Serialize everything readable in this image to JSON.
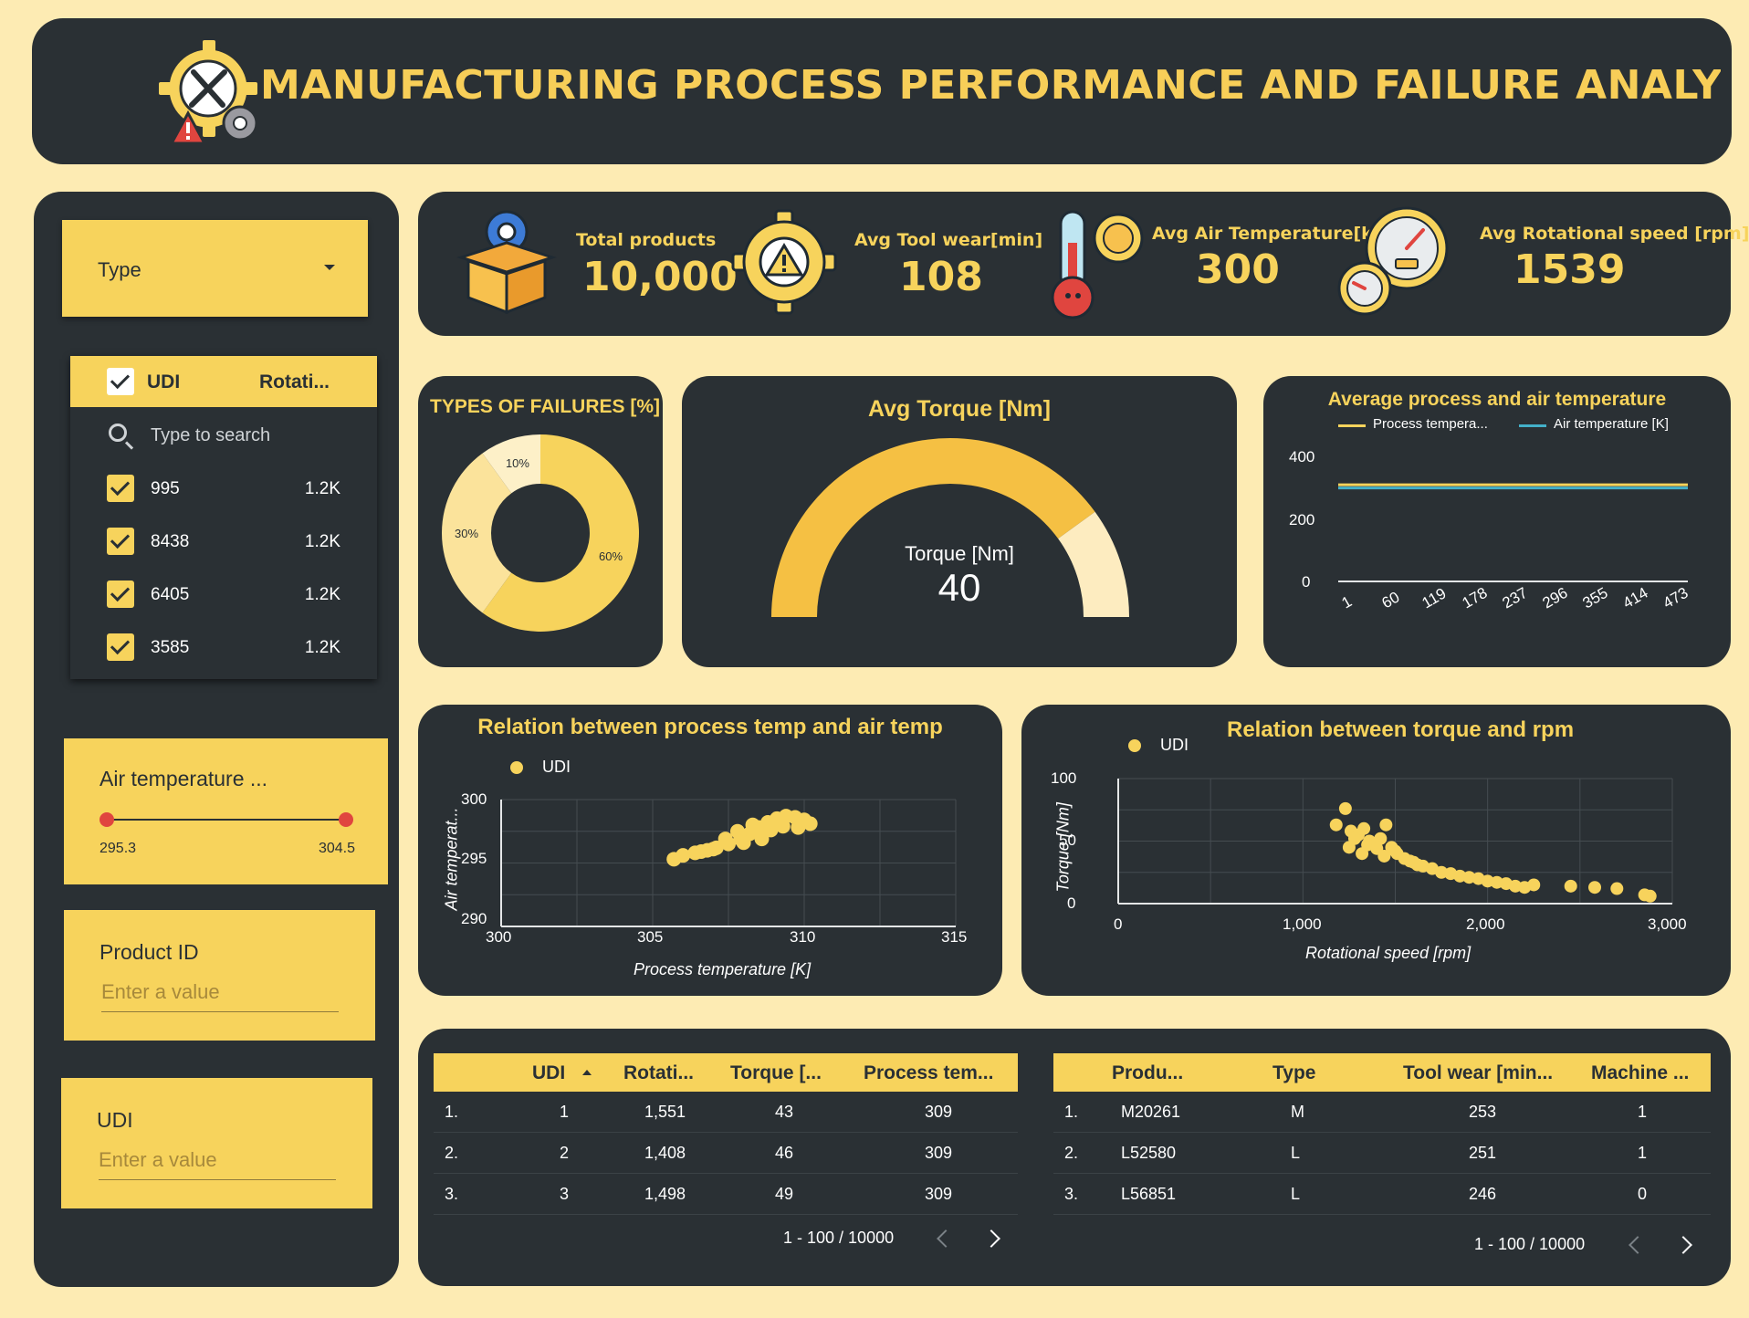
{
  "header": {
    "title": "MANUFACTURING PROCESS PERFORMANCE AND FAILURE ANALYSIS DASHBOARD"
  },
  "colors": {
    "background": "#fdebb3",
    "panel": "#2a3034",
    "accent": "#f7d35c",
    "slider_dot": "#e0453f",
    "air_line": "#43b0c9"
  },
  "filters": {
    "type_dropdown": {
      "label": "Type"
    },
    "udi_list": {
      "col1": "UDI",
      "col2": "Rotati...",
      "search_placeholder": "Type to search",
      "items": [
        {
          "value": "995",
          "count": "1.2K"
        },
        {
          "value": "8438",
          "count": "1.2K"
        },
        {
          "value": "6405",
          "count": "1.2K"
        },
        {
          "value": "3585",
          "count": "1.2K"
        }
      ]
    },
    "air_temp_slider": {
      "label": "Air temperature ...",
      "min": "295.3",
      "max": "304.5"
    },
    "product_id": {
      "label": "Product ID",
      "placeholder": "Enter a value"
    },
    "udi": {
      "label": "UDI",
      "placeholder": "Enter a value"
    }
  },
  "kpis": [
    {
      "label": "Total products",
      "value": "10,000",
      "icon": "box-gear-icon"
    },
    {
      "label": "Avg Tool wear[min]",
      "value": "108",
      "icon": "warning-gear-icon"
    },
    {
      "label": "Avg Air Temperature[k]",
      "value": "300",
      "icon": "thermometer-sun-icon"
    },
    {
      "label": "Avg Rotational speed [rpm]",
      "value": "1539",
      "icon": "speedometer-icon"
    }
  ],
  "failures_chart": {
    "title": "TYPES OF FAILURES [%]",
    "chart_data": {
      "type": "pie",
      "donut": true,
      "labels": [
        "60%",
        "30%",
        "10%"
      ],
      "values": [
        60,
        30,
        10
      ],
      "colors": [
        "#f7d35c",
        "#fbe39b",
        "#fdf0c8"
      ]
    }
  },
  "torque_gauge": {
    "title": "Avg Torque [Nm]",
    "label": "Torque [Nm]",
    "value": "40",
    "chart_data": {
      "type": "gauge",
      "value": 40,
      "min": 0,
      "max": 50
    }
  },
  "temp_line_chart": {
    "title": "Average process and air temperature",
    "legend": [
      "Process tempera...",
      "Air temperature [K]"
    ],
    "y_ticks": [
      "400",
      "200",
      "0"
    ],
    "x_ticks": [
      "1",
      "60",
      "119",
      "178",
      "237",
      "296",
      "355",
      "414",
      "473"
    ],
    "chart_data": {
      "type": "line",
      "ylim": [
        0,
        400
      ],
      "x": [
        1,
        60,
        119,
        178,
        237,
        296,
        355,
        414,
        473
      ],
      "series": [
        {
          "name": "Process tempera...",
          "color": "#f7d35c",
          "values": [
            309,
            309,
            309,
            309,
            309,
            309,
            309,
            309,
            309
          ]
        },
        {
          "name": "Air temperature [K]",
          "color": "#43b0c9",
          "values": [
            299,
            299,
            299,
            299,
            299,
            299,
            299,
            299,
            299
          ]
        }
      ]
    }
  },
  "scatter_temp": {
    "title": "Relation between process temp and air temp",
    "legend": "UDI",
    "xlabel": "Process temperature [K]",
    "ylabel": "Air temperat...",
    "x_ticks": [
      "300",
      "305",
      "310",
      "315"
    ],
    "y_ticks": [
      "300",
      "295",
      "290"
    ],
    "chart_data": {
      "type": "scatter",
      "xlim": [
        300,
        315
      ],
      "ylim": [
        290,
        300
      ],
      "x": [
        305.7,
        306.0,
        306.4,
        306.8,
        307.1,
        307.5,
        307.9,
        308.2,
        308.5,
        308.8,
        309.1,
        309.4,
        309.7,
        310.0,
        310.2,
        307.4,
        307.8,
        308.3,
        308.9,
        309.3,
        309.8,
        306.6,
        307.0,
        308.0,
        308.6
      ],
      "y": [
        295.3,
        295.6,
        295.8,
        296.0,
        296.2,
        296.5,
        296.9,
        297.3,
        297.8,
        298.2,
        298.5,
        298.7,
        298.6,
        298.4,
        298.1,
        296.9,
        297.5,
        298.0,
        297.6,
        297.9,
        297.8,
        295.9,
        296.1,
        296.6,
        296.9
      ]
    }
  },
  "scatter_torque": {
    "title": "Relation between torque and rpm",
    "legend": "UDI",
    "xlabel": "Rotational speed [rpm]",
    "ylabel": "Torque [Nm]",
    "x_ticks": [
      "0",
      "1,000",
      "2,000",
      "3,000"
    ],
    "y_ticks": [
      "100",
      "50",
      "0"
    ],
    "chart_data": {
      "type": "scatter",
      "xlim": [
        0,
        3000
      ],
      "ylim": [
        0,
        100
      ],
      "x": [
        1180,
        1230,
        1260,
        1300,
        1330,
        1360,
        1390,
        1420,
        1450,
        1480,
        1510,
        1250,
        1280,
        1350,
        1400,
        1500,
        1550,
        1600,
        1650,
        1700,
        1750,
        1800,
        1850,
        1900,
        1950,
        2000,
        2050,
        2100,
        2150,
        2200,
        2250,
        2450,
        2580,
        2700,
        2850,
        2880,
        1320,
        1440,
        1580,
        1620
      ],
      "y": [
        63,
        76,
        58,
        55,
        60,
        50,
        48,
        52,
        63,
        45,
        40,
        45,
        52,
        47,
        44,
        42,
        36,
        33,
        30,
        28,
        25,
        24,
        22,
        21,
        20,
        18,
        17,
        16,
        14,
        13,
        15,
        14,
        13,
        12,
        7,
        6,
        40,
        38,
        34,
        31
      ]
    }
  },
  "table_left": {
    "columns": [
      "UDI",
      "Rotati...",
      "Torque [...",
      "Process tem..."
    ],
    "rows": [
      {
        "idx": "1.",
        "c1": "1",
        "c2": "1,551",
        "c3": "43",
        "c4": "309"
      },
      {
        "idx": "2.",
        "c1": "2",
        "c2": "1,408",
        "c3": "46",
        "c4": "309"
      },
      {
        "idx": "3.",
        "c1": "3",
        "c2": "1,498",
        "c3": "49",
        "c4": "309"
      }
    ],
    "pager": "1 - 100 / 10000"
  },
  "table_right": {
    "columns": [
      "Produ...",
      "Type",
      "Tool wear [min...",
      "Machine ..."
    ],
    "rows": [
      {
        "idx": "1.",
        "c1": "M20261",
        "c2": "M",
        "c3": "253",
        "c4": "1"
      },
      {
        "idx": "2.",
        "c1": "L52580",
        "c2": "L",
        "c3": "251",
        "c4": "1"
      },
      {
        "idx": "3.",
        "c1": "L56851",
        "c2": "L",
        "c3": "246",
        "c4": "0"
      }
    ],
    "pager": "1 - 100 / 10000"
  }
}
